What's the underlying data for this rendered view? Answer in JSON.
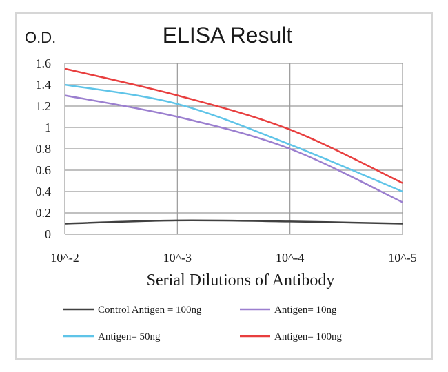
{
  "chart_data": {
    "type": "line",
    "title": "ELISA Result",
    "ylabel": "O.D.",
    "xlabel": "Serial Dilutions of Antibody",
    "categories": [
      "10^-2",
      "10^-3",
      "10^-4",
      "10^-5"
    ],
    "ylim": [
      0,
      1.6
    ],
    "yticks": [
      "0",
      "0.2",
      "0.4",
      "0.6",
      "0.8",
      "1",
      "1.2",
      "1.4",
      "1.6"
    ],
    "grid": true,
    "legend_position": "bottom",
    "series": [
      {
        "name": "Control Antigen = 100ng",
        "color": "#404040",
        "values": [
          0.1,
          0.13,
          0.12,
          0.1
        ]
      },
      {
        "name": "Antigen= 10ng",
        "color": "#9b7fcf",
        "values": [
          1.3,
          1.1,
          0.8,
          0.3
        ]
      },
      {
        "name": "Antigen= 50ng",
        "color": "#5fc4e8",
        "values": [
          1.4,
          1.22,
          0.84,
          0.4
        ]
      },
      {
        "name": "Antigen= 100ng",
        "color": "#e83e3e",
        "values": [
          1.55,
          1.3,
          0.98,
          0.48
        ]
      }
    ]
  }
}
